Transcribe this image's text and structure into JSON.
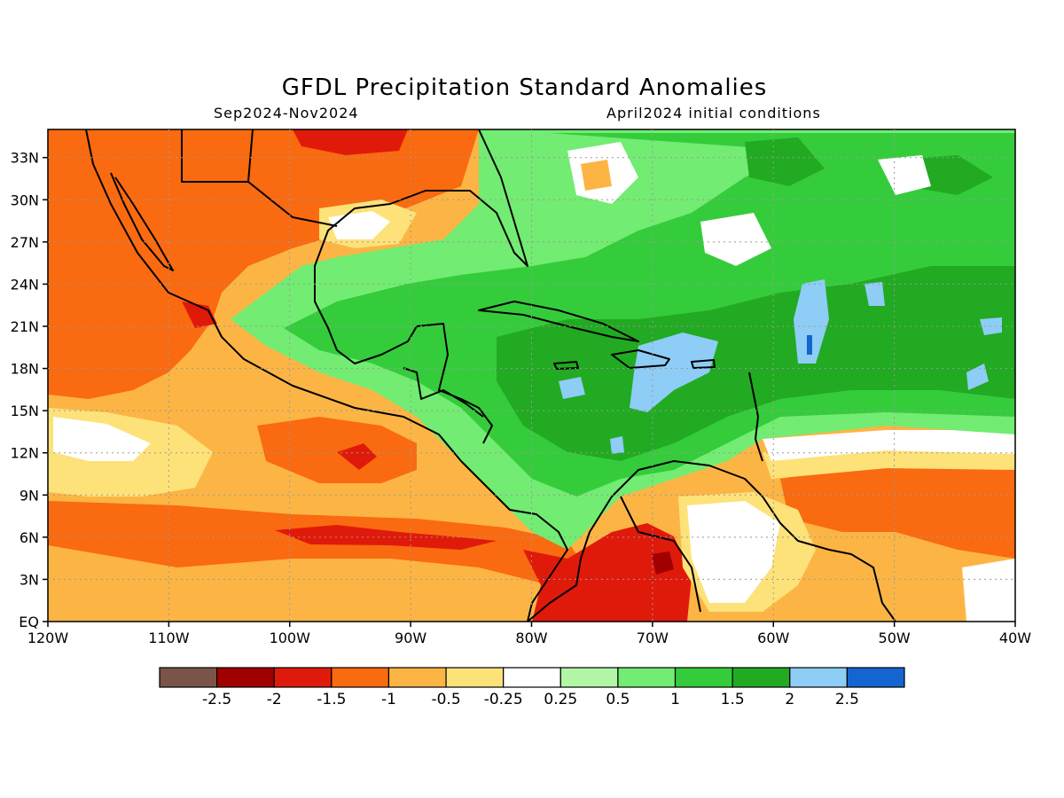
{
  "header": {
    "title": "GFDL Precipitation Standard Anomalies",
    "period": "Sep2024-Nov2024",
    "init": "April2024 initial conditions"
  },
  "map": {
    "lon_range": [
      -120,
      -40
    ],
    "lat_range": [
      0,
      35
    ],
    "x_ticks": [
      "120W",
      "110W",
      "100W",
      "90W",
      "80W",
      "70W",
      "60W",
      "50W",
      "40W"
    ],
    "y_ticks": [
      "EQ",
      "3N",
      "6N",
      "9N",
      "12N",
      "15N",
      "18N",
      "21N",
      "24N",
      "27N",
      "30N",
      "33N"
    ],
    "grid": "dotted"
  },
  "legend": {
    "colors": [
      "#7a5448",
      "#a00000",
      "#e01a0a",
      "#fa6a10",
      "#fcb545",
      "#fde27a",
      "#ffffff",
      "#b2f5a5",
      "#72ec72",
      "#35cc3c",
      "#22aa22",
      "#8ecdf5",
      "#1565d0"
    ],
    "labels": [
      "-2.5",
      "-2",
      "-1.5",
      "-1",
      "-0.5",
      "-0.25",
      "0.25",
      "0.5",
      "1",
      "1.5",
      "2",
      "2.5"
    ]
  },
  "palette": {
    "coast": "#000000",
    "grid": "#999999"
  }
}
